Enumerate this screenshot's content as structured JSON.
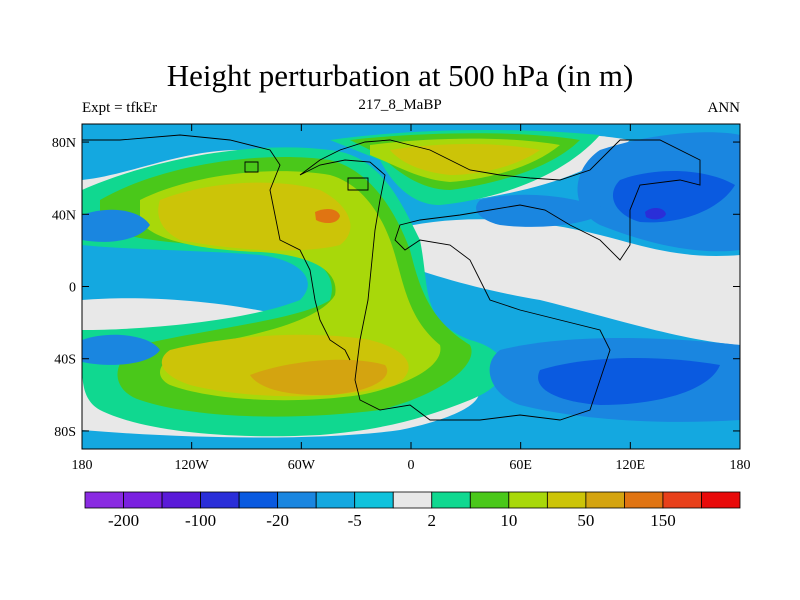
{
  "header": {
    "title": "Height perturbation at 500 hPa (in m)",
    "left_string": "Expt = tfkEr",
    "center_string": "217_8_MaBP",
    "right_string": "ANN"
  },
  "map": {
    "lon_ticks": [
      "180",
      "120W",
      "60W",
      "0",
      "60E",
      "120E",
      "180"
    ],
    "lat_ticks": [
      "80N",
      "40N",
      "0",
      "40S",
      "80S"
    ]
  },
  "colorbar": {
    "colors": [
      "#8a2be2",
      "#7a20e0",
      "#5a1ad8",
      "#2a2ed8",
      "#0a5ae0",
      "#1a86e0",
      "#14a8e0",
      "#10c2dc",
      "#e8e8e8",
      "#10d890",
      "#4ac81a",
      "#a8d80a",
      "#ccc408",
      "#d4a410",
      "#e07412",
      "#e8401a",
      "#e80a0a"
    ],
    "labels": [
      "-200",
      "-100",
      "-20",
      "-5",
      "2",
      "10",
      "50",
      "150"
    ]
  }
}
